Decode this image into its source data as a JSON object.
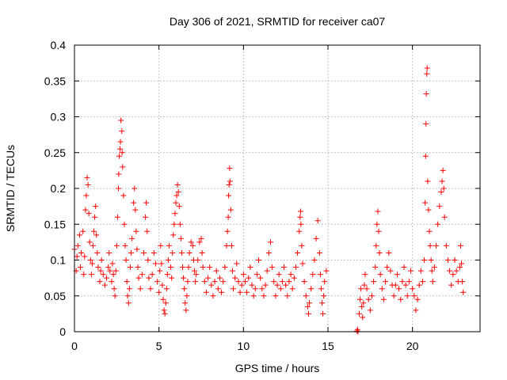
{
  "chart_data": {
    "type": "scatter",
    "title": "Day 306 of 2021, SRMTID for receiver ca07",
    "xlabel": "GPS time / hours",
    "ylabel": "SRMTID / TECUs",
    "xlim": [
      0,
      24
    ],
    "ylim": [
      0,
      0.4
    ],
    "x_ticks": [
      0,
      5,
      10,
      15,
      20
    ],
    "x_tick_labels": [
      "0",
      "5",
      "10",
      "15",
      "20"
    ],
    "y_ticks": [
      0,
      0.05,
      0.1,
      0.15,
      0.2,
      0.25,
      0.3,
      0.35,
      0.4
    ],
    "y_tick_labels": [
      "0",
      "0.05",
      "0.1",
      "0.15",
      "0.2",
      "0.25",
      "0.3",
      "0.35",
      "0.4"
    ],
    "grid": true,
    "marker": "+",
    "marker_color": "#ff0000",
    "series": [
      {
        "name": "SRMTID",
        "points": [
          [
            0.0,
            0.115
          ],
          [
            0.1,
            0.085
          ],
          [
            0.15,
            0.105
          ],
          [
            0.2,
            0.12
          ],
          [
            0.3,
            0.135
          ],
          [
            0.35,
            0.09
          ],
          [
            0.4,
            0.11
          ],
          [
            0.5,
            0.14
          ],
          [
            0.55,
            0.08
          ],
          [
            0.6,
            0.105
          ],
          [
            0.65,
            0.17
          ],
          [
            0.7,
            0.19
          ],
          [
            0.75,
            0.215
          ],
          [
            0.8,
            0.205
          ],
          [
            0.85,
            0.165
          ],
          [
            0.9,
            0.125
          ],
          [
            0.95,
            0.1
          ],
          [
            1.0,
            0.08
          ],
          [
            1.05,
            0.095
          ],
          [
            1.1,
            0.12
          ],
          [
            1.15,
            0.14
          ],
          [
            1.2,
            0.16
          ],
          [
            1.25,
            0.175
          ],
          [
            1.3,
            0.135
          ],
          [
            1.35,
            0.11
          ],
          [
            1.4,
            0.09
          ],
          [
            1.5,
            0.07
          ],
          [
            1.55,
            0.085
          ],
          [
            1.6,
            0.1
          ],
          [
            1.7,
            0.08
          ],
          [
            1.8,
            0.065
          ],
          [
            1.9,
            0.075
          ],
          [
            2.0,
            0.09
          ],
          [
            2.05,
            0.11
          ],
          [
            2.1,
            0.085
          ],
          [
            2.2,
            0.07
          ],
          [
            2.25,
            0.095
          ],
          [
            2.3,
            0.08
          ],
          [
            2.35,
            0.06
          ],
          [
            2.4,
            0.05
          ],
          [
            2.45,
            0.085
          ],
          [
            2.5,
            0.12
          ],
          [
            2.55,
            0.16
          ],
          [
            2.6,
            0.2
          ],
          [
            2.62,
            0.22
          ],
          [
            2.65,
            0.245
          ],
          [
            2.7,
            0.255
          ],
          [
            2.72,
            0.265
          ],
          [
            2.75,
            0.295
          ],
          [
            2.8,
            0.28
          ],
          [
            2.82,
            0.25
          ],
          [
            2.85,
            0.23
          ],
          [
            2.9,
            0.19
          ],
          [
            2.95,
            0.15
          ],
          [
            3.0,
            0.12
          ],
          [
            3.05,
            0.1
          ],
          [
            3.1,
            0.07
          ],
          [
            3.15,
            0.05
          ],
          [
            3.2,
            0.04
          ],
          [
            3.25,
            0.06
          ],
          [
            3.3,
            0.09
          ],
          [
            3.35,
            0.11
          ],
          [
            3.4,
            0.13
          ],
          [
            3.5,
            0.18
          ],
          [
            3.55,
            0.2
          ],
          [
            3.6,
            0.17
          ],
          [
            3.65,
            0.14
          ],
          [
            3.7,
            0.115
          ],
          [
            3.75,
            0.09
          ],
          [
            3.8,
            0.075
          ],
          [
            3.9,
            0.06
          ],
          [
            4.0,
            0.08
          ],
          [
            4.1,
            0.11
          ],
          [
            4.2,
            0.16
          ],
          [
            4.25,
            0.18
          ],
          [
            4.3,
            0.14
          ],
          [
            4.35,
            0.1
          ],
          [
            4.4,
            0.075
          ],
          [
            4.5,
            0.06
          ],
          [
            4.6,
            0.08
          ],
          [
            4.7,
            0.11
          ],
          [
            4.8,
            0.095
          ],
          [
            4.9,
            0.07
          ],
          [
            5.0,
            0.055
          ],
          [
            5.05,
            0.085
          ],
          [
            5.1,
            0.12
          ],
          [
            5.15,
            0.095
          ],
          [
            5.2,
            0.065
          ],
          [
            5.25,
            0.045
          ],
          [
            5.3,
            0.03
          ],
          [
            5.35,
            0.025
          ],
          [
            5.4,
            0.04
          ],
          [
            5.45,
            0.06
          ],
          [
            5.5,
            0.08
          ],
          [
            5.55,
            0.1
          ],
          [
            5.6,
            0.12
          ],
          [
            5.7,
            0.09
          ],
          [
            5.75,
            0.075
          ],
          [
            5.8,
            0.11
          ],
          [
            5.85,
            0.135
          ],
          [
            5.9,
            0.15
          ],
          [
            5.95,
            0.165
          ],
          [
            6.0,
            0.18
          ],
          [
            6.05,
            0.19
          ],
          [
            6.1,
            0.205
          ],
          [
            6.15,
            0.195
          ],
          [
            6.2,
            0.175
          ],
          [
            6.25,
            0.15
          ],
          [
            6.3,
            0.13
          ],
          [
            6.35,
            0.11
          ],
          [
            6.4,
            0.09
          ],
          [
            6.45,
            0.075
          ],
          [
            6.5,
            0.06
          ],
          [
            6.55,
            0.04
          ],
          [
            6.6,
            0.03
          ],
          [
            6.65,
            0.05
          ],
          [
            6.7,
            0.07
          ],
          [
            6.75,
            0.09
          ],
          [
            6.8,
            0.11
          ],
          [
            6.9,
            0.125
          ],
          [
            7.0,
            0.12
          ],
          [
            7.05,
            0.1
          ],
          [
            7.1,
            0.085
          ],
          [
            7.15,
            0.07
          ],
          [
            7.2,
            0.08
          ],
          [
            7.3,
            0.1
          ],
          [
            7.4,
            0.125
          ],
          [
            7.5,
            0.13
          ],
          [
            7.55,
            0.11
          ],
          [
            7.6,
            0.09
          ],
          [
            7.7,
            0.07
          ],
          [
            7.8,
            0.055
          ],
          [
            7.9,
            0.075
          ],
          [
            8.0,
            0.09
          ],
          [
            8.1,
            0.065
          ],
          [
            8.2,
            0.05
          ],
          [
            8.3,
            0.07
          ],
          [
            8.4,
            0.085
          ],
          [
            8.5,
            0.06
          ],
          [
            8.6,
            0.075
          ],
          [
            8.7,
            0.055
          ],
          [
            8.8,
            0.07
          ],
          [
            8.9,
            0.09
          ],
          [
            9.0,
            0.12
          ],
          [
            9.05,
            0.14
          ],
          [
            9.1,
            0.16
          ],
          [
            9.12,
            0.19
          ],
          [
            9.15,
            0.205
          ],
          [
            9.18,
            0.228
          ],
          [
            9.2,
            0.21
          ],
          [
            9.25,
            0.17
          ],
          [
            9.3,
            0.12
          ],
          [
            9.35,
            0.085
          ],
          [
            9.4,
            0.06
          ],
          [
            9.5,
            0.075
          ],
          [
            9.6,
            0.095
          ],
          [
            9.7,
            0.07
          ],
          [
            9.8,
            0.055
          ],
          [
            9.9,
            0.065
          ],
          [
            10.0,
            0.08
          ],
          [
            10.1,
            0.07
          ],
          [
            10.2,
            0.055
          ],
          [
            10.3,
            0.075
          ],
          [
            10.4,
            0.09
          ],
          [
            10.5,
            0.065
          ],
          [
            10.6,
            0.05
          ],
          [
            10.7,
            0.06
          ],
          [
            10.8,
            0.08
          ],
          [
            10.9,
            0.1
          ],
          [
            11.0,
            0.075
          ],
          [
            11.1,
            0.06
          ],
          [
            11.2,
            0.05
          ],
          [
            11.3,
            0.065
          ],
          [
            11.4,
            0.085
          ],
          [
            11.5,
            0.11
          ],
          [
            11.6,
            0.125
          ],
          [
            11.7,
            0.09
          ],
          [
            11.8,
            0.07
          ],
          [
            11.9,
            0.05
          ],
          [
            12.0,
            0.065
          ],
          [
            12.1,
            0.08
          ],
          [
            12.2,
            0.06
          ],
          [
            12.3,
            0.07
          ],
          [
            12.4,
            0.09
          ],
          [
            12.5,
            0.065
          ],
          [
            12.6,
            0.05
          ],
          [
            12.7,
            0.07
          ],
          [
            12.8,
            0.08
          ],
          [
            12.9,
            0.06
          ],
          [
            13.0,
            0.075
          ],
          [
            13.1,
            0.09
          ],
          [
            13.2,
            0.11
          ],
          [
            13.3,
            0.14
          ],
          [
            13.35,
            0.16
          ],
          [
            13.38,
            0.168
          ],
          [
            13.4,
            0.15
          ],
          [
            13.45,
            0.12
          ],
          [
            13.5,
            0.095
          ],
          [
            13.6,
            0.07
          ],
          [
            13.7,
            0.05
          ],
          [
            13.8,
            0.035
          ],
          [
            13.85,
            0.025
          ],
          [
            13.9,
            0.04
          ],
          [
            14.0,
            0.06
          ],
          [
            14.1,
            0.08
          ],
          [
            14.2,
            0.1
          ],
          [
            14.3,
            0.13
          ],
          [
            14.4,
            0.155
          ],
          [
            14.5,
            0.11
          ],
          [
            14.55,
            0.08
          ],
          [
            14.6,
            0.06
          ],
          [
            14.65,
            0.04
          ],
          [
            14.7,
            0.025
          ],
          [
            14.75,
            0.05
          ],
          [
            14.8,
            0.07
          ],
          [
            14.9,
            0.085
          ],
          [
            16.72,
            0.001
          ],
          [
            16.75,
            0.003
          ],
          [
            16.78,
            0.0
          ],
          [
            16.85,
            0.025
          ],
          [
            16.9,
            0.045
          ],
          [
            16.95,
            0.06
          ],
          [
            17.0,
            0.035
          ],
          [
            17.05,
            0.02
          ],
          [
            17.1,
            0.04
          ],
          [
            17.15,
            0.065
          ],
          [
            17.2,
            0.08
          ],
          [
            17.3,
            0.06
          ],
          [
            17.4,
            0.045
          ],
          [
            17.5,
            0.03
          ],
          [
            17.6,
            0.05
          ],
          [
            17.7,
            0.07
          ],
          [
            17.8,
            0.09
          ],
          [
            17.85,
            0.12
          ],
          [
            17.9,
            0.15
          ],
          [
            17.95,
            0.168
          ],
          [
            18.0,
            0.14
          ],
          [
            18.05,
            0.11
          ],
          [
            18.1,
            0.08
          ],
          [
            18.2,
            0.06
          ],
          [
            18.3,
            0.045
          ],
          [
            18.4,
            0.07
          ],
          [
            18.5,
            0.09
          ],
          [
            18.6,
            0.11
          ],
          [
            18.7,
            0.085
          ],
          [
            18.8,
            0.065
          ],
          [
            18.9,
            0.05
          ],
          [
            19.0,
            0.065
          ],
          [
            19.1,
            0.08
          ],
          [
            19.2,
            0.06
          ],
          [
            19.3,
            0.045
          ],
          [
            19.4,
            0.07
          ],
          [
            19.5,
            0.09
          ],
          [
            19.6,
            0.065
          ],
          [
            19.7,
            0.05
          ],
          [
            19.8,
            0.07
          ],
          [
            19.9,
            0.085
          ],
          [
            20.0,
            0.06
          ],
          [
            20.1,
            0.05
          ],
          [
            20.2,
            0.03
          ],
          [
            20.3,
            0.045
          ],
          [
            20.4,
            0.065
          ],
          [
            20.5,
            0.085
          ],
          [
            20.6,
            0.07
          ],
          [
            20.7,
            0.1
          ],
          [
            20.75,
            0.18
          ],
          [
            20.78,
            0.245
          ],
          [
            20.8,
            0.29
          ],
          [
            20.82,
            0.332
          ],
          [
            20.85,
            0.36
          ],
          [
            20.87,
            0.368
          ],
          [
            20.9,
            0.21
          ],
          [
            20.95,
            0.17
          ],
          [
            21.0,
            0.14
          ],
          [
            21.05,
            0.12
          ],
          [
            21.1,
            0.1
          ],
          [
            21.15,
            0.085
          ],
          [
            21.2,
            0.07
          ],
          [
            21.3,
            0.09
          ],
          [
            21.4,
            0.12
          ],
          [
            21.5,
            0.15
          ],
          [
            21.6,
            0.175
          ],
          [
            21.7,
            0.195
          ],
          [
            21.75,
            0.21
          ],
          [
            21.8,
            0.225
          ],
          [
            21.85,
            0.2
          ],
          [
            21.9,
            0.16
          ],
          [
            22.0,
            0.12
          ],
          [
            22.1,
            0.1
          ],
          [
            22.2,
            0.085
          ],
          [
            22.3,
            0.065
          ],
          [
            22.4,
            0.08
          ],
          [
            22.5,
            0.1
          ],
          [
            22.6,
            0.085
          ],
          [
            22.7,
            0.07
          ],
          [
            22.8,
            0.09
          ],
          [
            22.85,
            0.12
          ],
          [
            22.9,
            0.095
          ],
          [
            22.95,
            0.07
          ],
          [
            23.0,
            0.055
          ]
        ]
      }
    ]
  }
}
